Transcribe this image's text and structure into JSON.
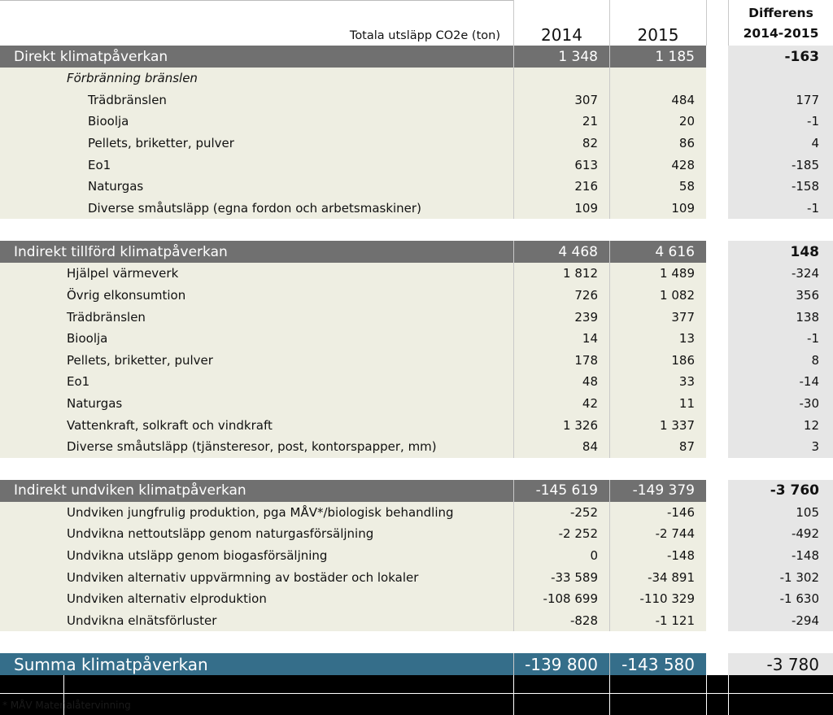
{
  "header": {
    "caption": "Totala utsläpp CO2e (ton)",
    "year1": "2014",
    "year2": "2015",
    "diff_line1": "Differens",
    "diff_line2": "2014-2015"
  },
  "sections": [
    {
      "title": "Direkt klimatpåverkan",
      "v2014": "1 348",
      "v2015": "1 185",
      "diff": "-163",
      "subtitle": "Förbränning bränslen",
      "rows": [
        {
          "label": "Trädbränslen",
          "v2014": "307",
          "v2015": "484",
          "diff": "177"
        },
        {
          "label": "Bioolja",
          "v2014": "21",
          "v2015": "20",
          "diff": "-1"
        },
        {
          "label": "Pellets, briketter, pulver",
          "v2014": "82",
          "v2015": "86",
          "diff": "4"
        },
        {
          "label": "Eo1",
          "v2014": "613",
          "v2015": "428",
          "diff": "-185"
        },
        {
          "label": "Naturgas",
          "v2014": "216",
          "v2015": "58",
          "diff": "-158"
        },
        {
          "label": "Diverse småutsläpp (egna fordon och arbetsmaskiner)",
          "v2014": "109",
          "v2015": "109",
          "diff": "-1"
        }
      ]
    },
    {
      "title": "Indirekt tillförd klimatpåverkan",
      "v2014": "4 468",
      "v2015": "4 616",
      "diff": "148",
      "rows": [
        {
          "label": "Hjälpel värmeverk",
          "v2014": "1 812",
          "v2015": "1 489",
          "diff": "-324"
        },
        {
          "label": "Övrig elkonsumtion",
          "v2014": "726",
          "v2015": "1 082",
          "diff": "356"
        },
        {
          "label": "Trädbränslen",
          "v2014": "239",
          "v2015": "377",
          "diff": "138"
        },
        {
          "label": "Bioolja",
          "v2014": "14",
          "v2015": "13",
          "diff": "-1"
        },
        {
          "label": "Pellets, briketter, pulver",
          "v2014": "178",
          "v2015": "186",
          "diff": "8"
        },
        {
          "label": "Eo1",
          "v2014": "48",
          "v2015": "33",
          "diff": "-14"
        },
        {
          "label": "Naturgas",
          "v2014": "42",
          "v2015": "11",
          "diff": "-30"
        },
        {
          "label": "Vattenkraft, solkraft och vindkraft",
          "v2014": "1 326",
          "v2015": "1 337",
          "diff": "12"
        },
        {
          "label": "Diverse småutsläpp (tjänsteresor, post, kontorspapper, mm)",
          "v2014": "84",
          "v2015": "87",
          "diff": "3"
        }
      ]
    },
    {
      "title": "Indirekt undviken klimatpåverkan",
      "v2014": "-145 619",
      "v2015": "-149 379",
      "diff": "-3 760",
      "rows": [
        {
          "label": "Undviken jungfrulig produktion, pga MÅV*/biologisk behandling",
          "v2014": "-252",
          "v2015": "-146",
          "diff": "105"
        },
        {
          "label": "Undvikna nettoutsläpp genom naturgasförsäljning",
          "v2014": "-2 252",
          "v2015": "-2 744",
          "diff": "-492"
        },
        {
          "label": "Undvikna utsläpp genom biogasförsäljning",
          "v2014": "0",
          "v2015": "-148",
          "diff": "-148"
        },
        {
          "label": "Undviken alternativ uppvärmning av bostäder och lokaler",
          "v2014": "-33 589",
          "v2015": "-34 891",
          "diff": "-1 302"
        },
        {
          "label": "Undviken alternativ elproduktion",
          "v2014": "-108 699",
          "v2015": "-110 329",
          "diff": "-1 630"
        },
        {
          "label": "Undvikna elnätsförluster",
          "v2014": "-828",
          "v2015": "-1 121",
          "diff": "-294"
        }
      ]
    }
  ],
  "total": {
    "label": "Summa klimatpåverkan",
    "v2014": "-139 800",
    "v2015": "-143 580",
    "diff": "-3 780"
  },
  "footnote": "* MÅV  Materialåtervinning"
}
